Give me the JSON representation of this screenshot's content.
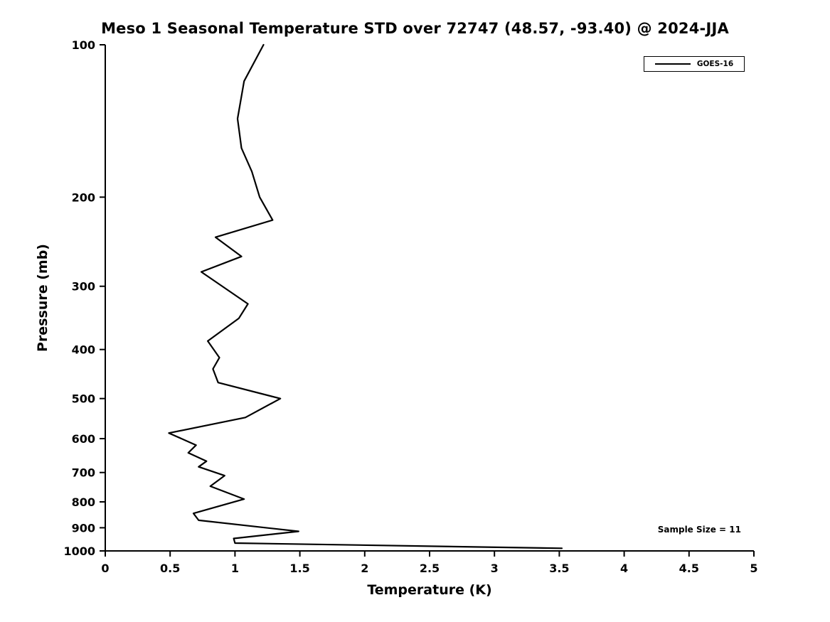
{
  "title": "Meso 1 Seasonal Temperature STD over 72747 (48.57, -93.40) @ 2024-JJA",
  "colors": {
    "line": "#000000",
    "text": "#000000",
    "background": "#ffffff"
  },
  "chart_data": {
    "type": "line",
    "title": "Meso 1 Seasonal Temperature STD over 72747 (48.57, -93.40) @ 2024-JJA",
    "xlabel": "Temperature (K)",
    "ylabel": "Pressure (mb)",
    "xlim": [
      0,
      5
    ],
    "ylim": [
      100,
      1000
    ],
    "y_scale": "log",
    "y_inverted": true,
    "grid": false,
    "x_tick_labels": [
      "0",
      "0.5",
      "1",
      "1.5",
      "2",
      "2.5",
      "3",
      "3.5",
      "4",
      "4.5",
      "5"
    ],
    "x_ticks": [
      0,
      0.5,
      1,
      1.5,
      2,
      2.5,
      3,
      3.5,
      4,
      4.5,
      5
    ],
    "y_ticks": [
      100,
      200,
      300,
      400,
      500,
      600,
      700,
      800,
      900,
      1000
    ],
    "legend": {
      "position": "upper right",
      "entries": [
        {
          "label": "GOES-16",
          "color": "#000000",
          "style": "solid"
        }
      ]
    },
    "annotation": "Sample Size = 11",
    "series": [
      {
        "name": "GOES-16",
        "color": "#000000",
        "pressure_mb": [
          100,
          118,
          140,
          160,
          178,
          200,
          222,
          240,
          262,
          281,
          325,
          347,
          385,
          415,
          437,
          465,
          500,
          545,
          585,
          618,
          640,
          665,
          682,
          710,
          745,
          790,
          843,
          870,
          915,
          945,
          965,
          988
        ],
        "std_k": [
          1.22,
          1.07,
          1.02,
          1.05,
          1.13,
          1.19,
          1.29,
          0.85,
          1.05,
          0.74,
          1.1,
          1.03,
          0.79,
          0.88,
          0.83,
          0.87,
          1.35,
          1.08,
          0.49,
          0.7,
          0.64,
          0.78,
          0.72,
          0.92,
          0.81,
          1.07,
          0.68,
          0.72,
          1.49,
          0.99,
          1.0,
          3.52
        ]
      }
    ]
  }
}
